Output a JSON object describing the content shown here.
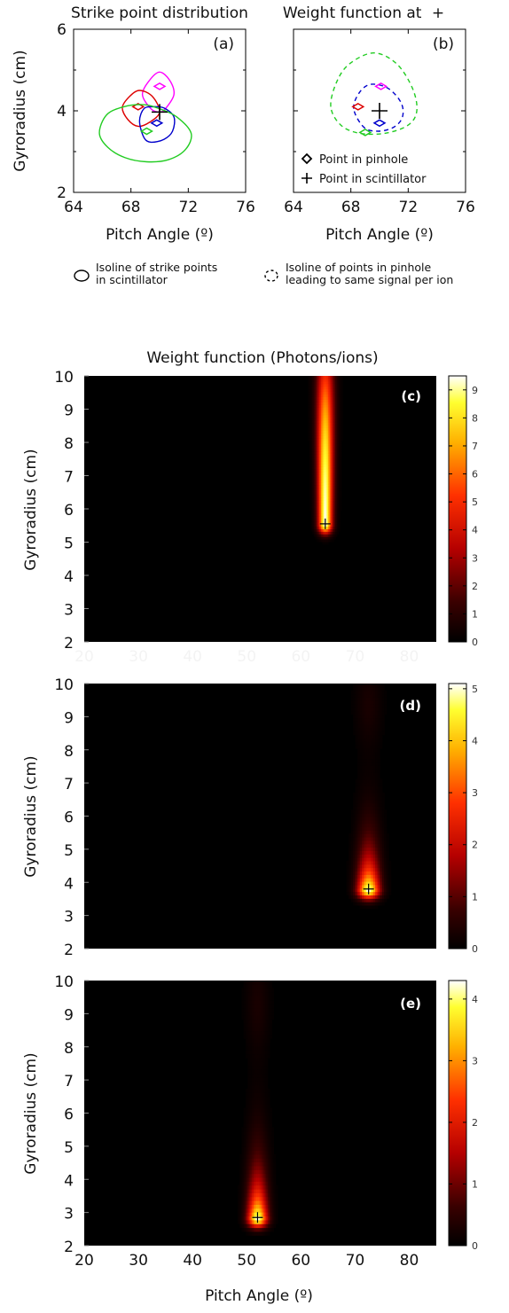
{
  "figure": {
    "legend_isoline_scintillator": [
      "Isoline of strike points",
      "in scintillator"
    ],
    "legend_isoline_pinhole": [
      "Isoline of points in pinhole",
      "leading to same signal per ion"
    ]
  },
  "chart_data": [
    {
      "panel": "(a)",
      "type": "line",
      "title": "Strike point distribution",
      "xlabel": "Pitch Angle (º)",
      "ylabel": "Gyroradius (cm)",
      "xlim": [
        64,
        76
      ],
      "ylim": [
        2,
        6
      ],
      "xticks": [
        "64",
        "68",
        "72",
        "76"
      ],
      "yticks": [
        "2",
        "4",
        "6"
      ],
      "series": [
        {
          "color": "#ff00ff",
          "marker": "diamond",
          "marker_point": [
            70.0,
            4.6
          ],
          "isoline": [
            [
              68.8,
              4.4
            ],
            [
              69.3,
              4.75
            ],
            [
              70.0,
              4.95
            ],
            [
              70.7,
              4.75
            ],
            [
              71.0,
              4.4
            ],
            [
              70.4,
              4.05
            ],
            [
              70.0,
              3.97
            ],
            [
              69.4,
              4.05
            ],
            [
              68.8,
              4.4
            ]
          ]
        },
        {
          "color": "#dd0000",
          "marker": "diamond",
          "marker_point": [
            68.5,
            4.1
          ],
          "isoline": [
            [
              67.4,
              4.08
            ],
            [
              67.9,
              4.35
            ],
            [
              68.6,
              4.5
            ],
            [
              69.5,
              4.35
            ],
            [
              70.0,
              3.97
            ],
            [
              69.3,
              3.72
            ],
            [
              68.5,
              3.62
            ],
            [
              67.8,
              3.78
            ],
            [
              67.4,
              4.08
            ]
          ]
        },
        {
          "color": "#0000cc",
          "marker": "diamond",
          "marker_point": [
            69.8,
            3.7
          ],
          "isoline": [
            [
              68.6,
              3.75
            ],
            [
              68.9,
              4.05
            ],
            [
              69.5,
              4.1
            ],
            [
              70.3,
              4.07
            ],
            [
              71.0,
              3.85
            ],
            [
              70.9,
              3.5
            ],
            [
              70.3,
              3.3
            ],
            [
              69.4,
              3.23
            ],
            [
              68.9,
              3.35
            ],
            [
              68.6,
              3.75
            ]
          ]
        },
        {
          "color": "#22cc22",
          "marker": "diamond",
          "marker_point": [
            69.1,
            3.5
          ],
          "isoline": [
            [
              65.8,
              3.45
            ],
            [
              66.3,
              3.9
            ],
            [
              67.5,
              4.1
            ],
            [
              68.9,
              4.15
            ],
            [
              70.0,
              4.05
            ],
            [
              71.2,
              3.85
            ],
            [
              72.2,
              3.45
            ],
            [
              71.8,
              3.05
            ],
            [
              70.6,
              2.8
            ],
            [
              69.1,
              2.75
            ],
            [
              67.6,
              2.85
            ],
            [
              66.4,
              3.1
            ],
            [
              65.8,
              3.45
            ]
          ]
        }
      ],
      "scintillator_point": [
        70.0,
        3.97
      ]
    },
    {
      "panel": "(b)",
      "type": "line",
      "title": "Weight function at",
      "title_symbol": "+",
      "xlabel": "Pitch Angle (º)",
      "xlim": [
        64,
        76
      ],
      "ylim": [
        2,
        6
      ],
      "xticks": [
        "64",
        "68",
        "72",
        "76"
      ],
      "legend": [
        {
          "symbol": "◇",
          "label": "Point in pinhole"
        },
        {
          "symbol": "+",
          "label": "Point in scintillator"
        }
      ],
      "series": [
        {
          "color": "#22cc22",
          "style": "dashed",
          "marker_point": [
            69.0,
            3.47
          ],
          "isoline": [
            [
              66.6,
              4.1
            ],
            [
              67.0,
              4.7
            ],
            [
              67.9,
              5.15
            ],
            [
              69.6,
              5.42
            ],
            [
              71.2,
              5.15
            ],
            [
              72.3,
              4.55
            ],
            [
              72.6,
              4.0
            ],
            [
              72.0,
              3.65
            ],
            [
              70.4,
              3.45
            ],
            [
              68.6,
              3.45
            ],
            [
              67.3,
              3.65
            ],
            [
              66.6,
              4.1
            ]
          ]
        },
        {
          "color": "#0000cc",
          "style": "dashed",
          "marker_point": [
            70.0,
            3.7
          ],
          "isoline": [
            [
              68.2,
              4.05
            ],
            [
              68.6,
              4.45
            ],
            [
              69.4,
              4.65
            ],
            [
              70.6,
              4.55
            ],
            [
              71.5,
              4.2
            ],
            [
              71.6,
              3.85
            ],
            [
              71.0,
              3.6
            ],
            [
              69.9,
              3.5
            ],
            [
              68.9,
              3.6
            ],
            [
              68.2,
              4.05
            ]
          ]
        },
        {
          "color": "#ff00ff",
          "marker": "diamond",
          "marker_point": [
            70.1,
            4.6
          ]
        },
        {
          "color": "#dd0000",
          "marker": "diamond",
          "marker_point": [
            68.5,
            4.1
          ]
        }
      ],
      "scintillator_point": [
        70.0,
        4.0
      ]
    },
    {
      "panel": "(c)",
      "type": "heatmap",
      "title": "Weight function (Photons/ions)",
      "ylabel": "Gyroradius (cm)",
      "xlim": [
        20,
        85
      ],
      "ylim": [
        2,
        10
      ],
      "yticks": [
        "2",
        "3",
        "4",
        "5",
        "6",
        "7",
        "8",
        "9",
        "10"
      ],
      "xticks_faded": [
        "20",
        "30",
        "40",
        "50",
        "60",
        "70",
        "80"
      ],
      "colorbar": {
        "min": 0,
        "max": 9.5,
        "ticks": [
          "0",
          "1",
          "2",
          "3",
          "4",
          "5",
          "6",
          "7",
          "8",
          "9"
        ]
      },
      "marker": [
        64.5,
        5.55
      ],
      "peak": {
        "x": 64.5,
        "y_start": 5.55,
        "y_end": 10,
        "sigma_x": 1.3,
        "max": 9.5
      }
    },
    {
      "panel": "(d)",
      "type": "heatmap",
      "ylabel": "Gyroradius (cm)",
      "xlim": [
        20,
        85
      ],
      "ylim": [
        2,
        10
      ],
      "yticks": [
        "2",
        "3",
        "4",
        "5",
        "6",
        "7",
        "8",
        "9",
        "10"
      ],
      "colorbar": {
        "min": 0,
        "max": 5.1,
        "ticks": [
          "0",
          "1",
          "2",
          "3",
          "4",
          "5"
        ]
      },
      "marker": [
        72.5,
        3.8
      ],
      "peak": {
        "x": 72.5,
        "y_start": 3.8,
        "y_end": 10,
        "sigma_x": 2.0,
        "max": 5.1
      }
    },
    {
      "panel": "(e)",
      "type": "heatmap",
      "xlabel": "Pitch Angle (º)",
      "ylabel": "Gyroradius (cm)",
      "xlim": [
        20,
        85
      ],
      "ylim": [
        2,
        10
      ],
      "xticks": [
        "20",
        "30",
        "40",
        "50",
        "60",
        "70",
        "80"
      ],
      "yticks": [
        "2",
        "3",
        "4",
        "5",
        "6",
        "7",
        "8",
        "9",
        "10"
      ],
      "colorbar": {
        "min": 0,
        "max": 4.3,
        "ticks": [
          "0",
          "1",
          "2",
          "3",
          "4"
        ]
      },
      "marker": [
        52.0,
        2.85
      ],
      "peak": {
        "x": 52.0,
        "y_start": 2.85,
        "y_end": 10,
        "sigma_x": 1.8,
        "max": 4.3
      }
    }
  ]
}
